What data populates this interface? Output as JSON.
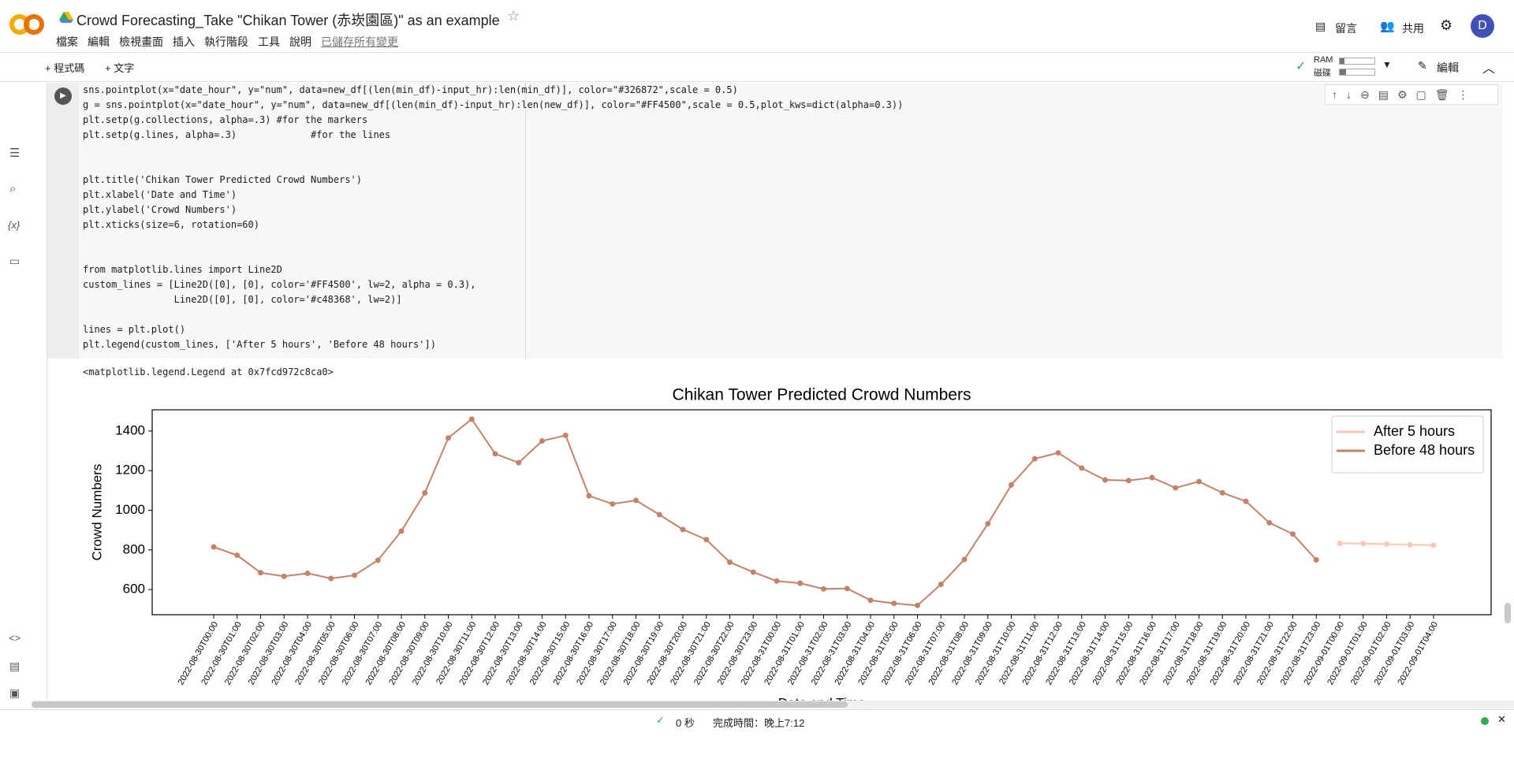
{
  "header": {
    "title": "Crowd Forecasting_Take \"Chikan Tower (赤崁園區)\" as an example",
    "menu": [
      "檔案",
      "編輯",
      "檢視畫面",
      "插入",
      "執行階段",
      "工具",
      "說明"
    ],
    "saved": "已儲存所有變更",
    "comment": "留言",
    "share": "共用",
    "avatar": "D"
  },
  "toolbar": {
    "add_code": "+ 程式碼",
    "add_text": "+ 文字",
    "ram": "RAM",
    "disk": "磁碟",
    "edit": "編輯"
  },
  "sidebar": {
    "variables": "{x}"
  },
  "code": {
    "blocks": [
      [
        "sns.pointplot(x=\"date_hour\", y=\"num\", data=new_df[(len(min_df)-input_hr):len(min_df)], color=\"#326872\",scale = 0.5)",
        "g = sns.pointplot(x=\"date_hour\", y=\"num\", data=new_df[(len(min_df)-input_hr):len(new_df)], color=\"#FF4500\",scale = 0.5,plot_kws=dict(alpha=0.3))",
        "plt.setp(g.collections, alpha=.3) #for the markers",
        "plt.setp(g.lines, alpha=.3)             #for the lines"
      ],
      [
        "plt.title('Chikan Tower Predicted Crowd Numbers')",
        "plt.xlabel('Date and Time')",
        "plt.ylabel('Crowd Numbers')",
        "plt.xticks(size=6, rotation=60)"
      ],
      [
        "from matplotlib.lines import Line2D",
        "custom_lines = [Line2D([0], [0], color='#FF4500', lw=2, alpha = 0.3),",
        "                Line2D([0], [0], color='#c48368', lw=2)]"
      ],
      [
        "lines = plt.plot()",
        "plt.legend(custom_lines, ['After 5 hours', 'Before 48 hours'])"
      ]
    ]
  },
  "output": "<matplotlib.legend.Legend at 0x7fcd972c8ca0>",
  "status": {
    "duration": "0 秒",
    "finished": "完成時間：晚上7:12"
  },
  "chart_data": {
    "type": "line",
    "title": "Chikan Tower Predicted Crowd Numbers",
    "x_label": "Date and Time",
    "y_label": "Crowd Numbers",
    "categories": [
      "2022-08-30T00:00",
      "2022-08-30T01:00",
      "2022-08-30T02:00",
      "2022-08-30T03:00",
      "2022-08-30T04:00",
      "2022-08-30T05:00",
      "2022-08-30T06:00",
      "2022-08-30T07:00",
      "2022-08-30T08:00",
      "2022-08-30T09:00",
      "2022-08-30T10:00",
      "2022-08-30T11:00",
      "2022-08-30T12:00",
      "2022-08-30T13:00",
      "2022-08-30T14:00",
      "2022-08-30T15:00",
      "2022-08-30T16:00",
      "2022-08-30T17:00",
      "2022-08-30T18:00",
      "2022-08-30T19:00",
      "2022-08-30T20:00",
      "2022-08-30T21:00",
      "2022-08-30T22:00",
      "2022-08-30T23:00",
      "2022-08-31T00:00",
      "2022-08-31T01:00",
      "2022-08-31T02:00",
      "2022-08-31T03:00",
      "2022-08-31T04:00",
      "2022-08-31T05:00",
      "2022-08-31T06:00",
      "2022-08-31T07:00",
      "2022-08-31T08:00",
      "2022-08-31T09:00",
      "2022-08-31T10:00",
      "2022-08-31T11:00",
      "2022-08-31T12:00",
      "2022-08-31T13:00",
      "2022-08-31T14:00",
      "2022-08-31T15:00",
      "2022-08-31T16:00",
      "2022-08-31T17:00",
      "2022-08-31T18:00",
      "2022-08-31T19:00",
      "2022-08-31T20:00",
      "2022-08-31T21:00",
      "2022-08-31T22:00",
      "2022-08-31T23:00",
      "2022-09-01T00:00",
      "2022-09-01T01:00",
      "2022-09-01T02:00",
      "2022-09-01T03:00",
      "2022-09-01T04:00"
    ],
    "series": [
      {
        "name": "After 5 hours",
        "color": "#ffc7b3",
        "values": [
          null,
          null,
          null,
          null,
          null,
          null,
          null,
          null,
          null,
          null,
          null,
          null,
          null,
          null,
          null,
          null,
          null,
          null,
          null,
          null,
          null,
          null,
          null,
          null,
          null,
          null,
          null,
          null,
          null,
          null,
          null,
          null,
          null,
          null,
          null,
          null,
          null,
          null,
          null,
          null,
          null,
          null,
          null,
          null,
          null,
          null,
          null,
          null,
          833,
          832,
          829,
          826,
          824
        ]
      },
      {
        "name": "Before 48 hours",
        "color": "#c48368",
        "values": [
          815,
          773,
          685,
          667,
          682,
          656,
          672,
          748,
          895,
          1088,
          1365,
          1460,
          1285,
          1240,
          1350,
          1378,
          1073,
          1032,
          1050,
          978,
          903,
          852,
          738,
          688,
          643,
          632,
          603,
          605,
          546,
          530,
          520,
          626,
          752,
          932,
          1128,
          1260,
          1290,
          1213,
          1153,
          1150,
          1165,
          1113,
          1145,
          1088,
          1045,
          937,
          880,
          750,
          null,
          null,
          null,
          null,
          null
        ]
      }
    ],
    "ylim": [
      473,
      1507
    ],
    "yticks": [
      600,
      800,
      1000,
      1200,
      1400
    ],
    "grid": false,
    "legend": "upper right"
  }
}
